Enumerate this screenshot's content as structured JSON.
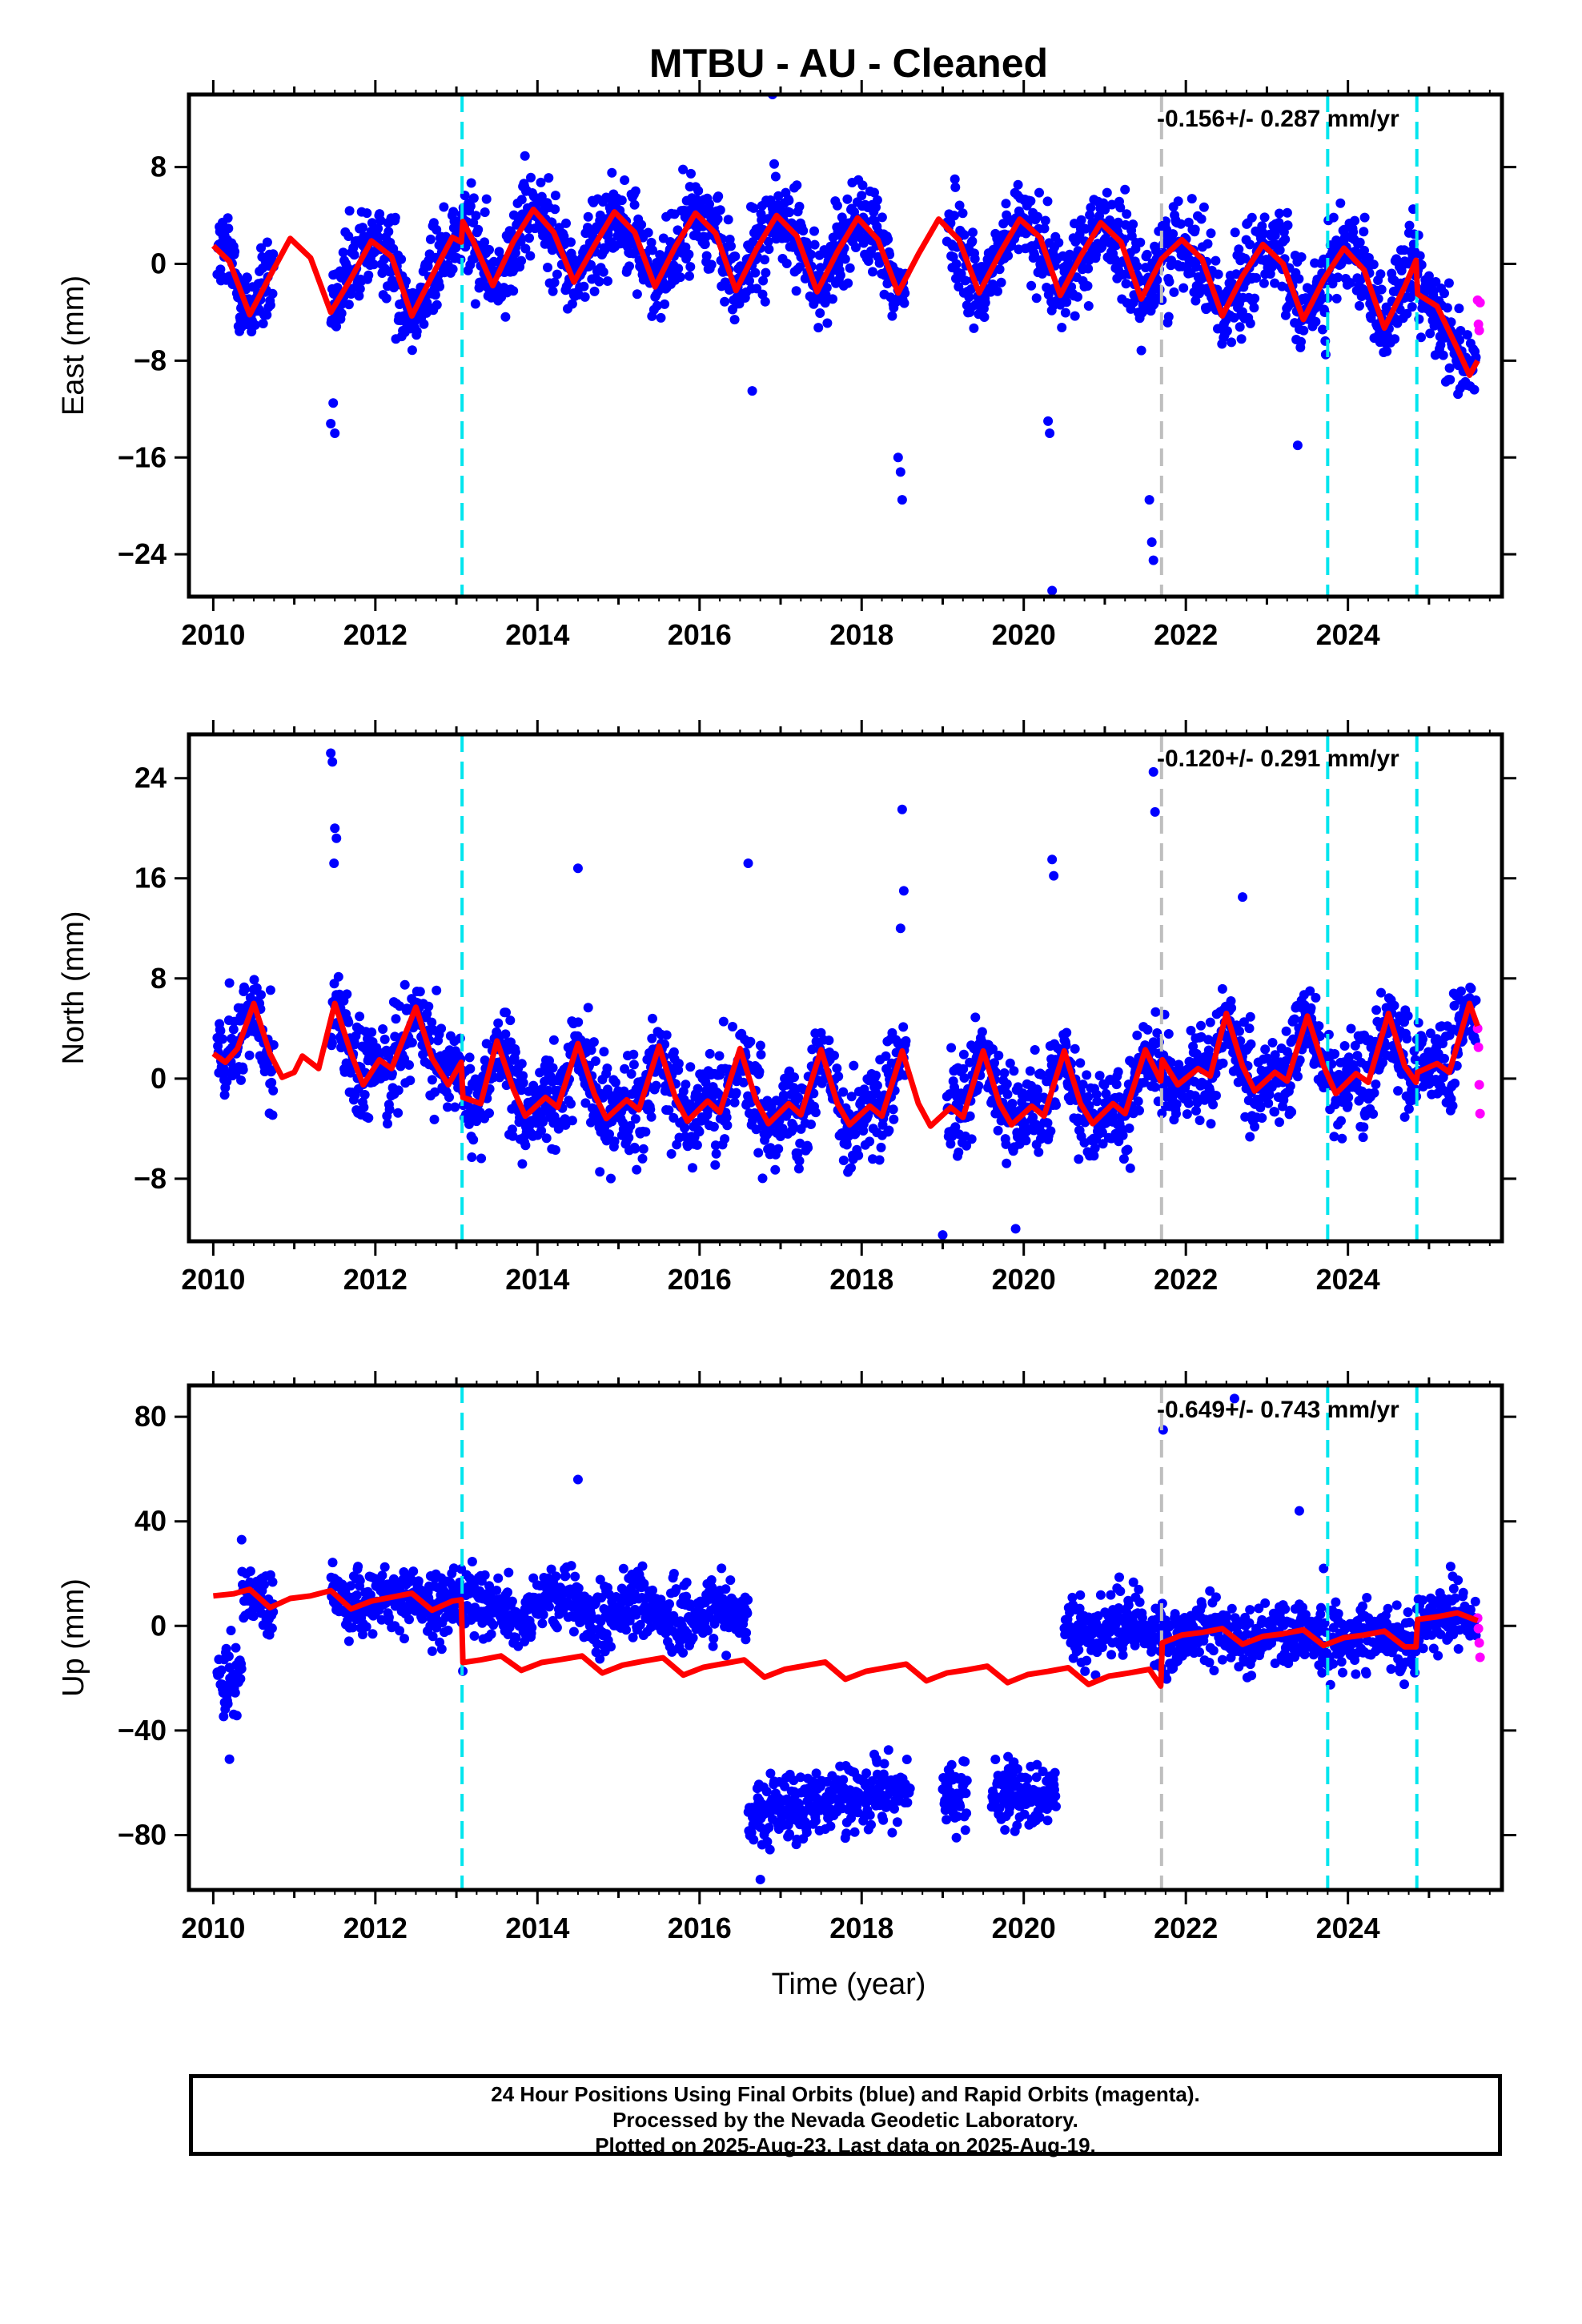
{
  "title": "MTBU  - AU - Cleaned",
  "x_axis_label": "Time (year)",
  "colors": {
    "final_orbits": "#0000ff",
    "rapid_orbits": "#ff00ff",
    "model": "#ff0000",
    "event_line": "#00e5ee",
    "grey_event_line": "#bebebe"
  },
  "footer": {
    "line1": "24 Hour Positions Using Final Orbits (blue) and Rapid Orbits (magenta).",
    "line2": "Processed by the Nevada Geodetic Laboratory.",
    "line3": "Plotted on 2025-Aug-23. Last data on 2025-Aug-19."
  },
  "chart_data": [
    {
      "type": "scatter",
      "component": "East",
      "ylabel": "East (mm)",
      "rate_label": "-0.156+/- 0.287 mm/yr",
      "xlim": [
        2009.7,
        2025.9
      ],
      "ylim": [
        -27.5,
        14
      ],
      "xticks": [
        2010,
        2012,
        2014,
        2016,
        2018,
        2020,
        2022,
        2024
      ],
      "yticks": [
        8,
        0,
        -8,
        -16,
        -24
      ],
      "event_lines_cyan": [
        2013.07,
        2023.75,
        2024.85
      ],
      "event_lines_grey": [
        2021.7
      ],
      "model": [
        [
          2010.0,
          1.5
        ],
        [
          2010.2,
          0.2
        ],
        [
          2010.45,
          -4.2
        ],
        [
          2010.7,
          -1.0
        ],
        [
          2010.95,
          2.1
        ],
        [
          2011.2,
          0.5
        ],
        [
          2011.45,
          -4.0
        ],
        [
          2011.7,
          -1.2
        ],
        [
          2011.95,
          1.9
        ],
        [
          2012.2,
          0.6
        ],
        [
          2012.45,
          -4.3
        ],
        [
          2012.7,
          -1.0
        ],
        [
          2012.95,
          2.2
        ],
        [
          2013.06,
          1.8
        ],
        [
          2013.08,
          3.5
        ],
        [
          2013.2,
          2.0
        ],
        [
          2013.45,
          -1.8
        ],
        [
          2013.7,
          1.8
        ],
        [
          2013.95,
          4.5
        ],
        [
          2014.2,
          2.6
        ],
        [
          2014.45,
          -1.5
        ],
        [
          2014.7,
          1.5
        ],
        [
          2014.95,
          4.3
        ],
        [
          2015.2,
          2.6
        ],
        [
          2015.45,
          -1.9
        ],
        [
          2015.7,
          1.4
        ],
        [
          2015.95,
          4.2
        ],
        [
          2016.2,
          2.5
        ],
        [
          2016.45,
          -2.2
        ],
        [
          2016.7,
          1.2
        ],
        [
          2016.95,
          4.0
        ],
        [
          2017.2,
          2.3
        ],
        [
          2017.45,
          -2.3
        ],
        [
          2017.7,
          1.0
        ],
        [
          2017.95,
          3.8
        ],
        [
          2018.2,
          2.0
        ],
        [
          2018.45,
          -2.4
        ],
        [
          2018.7,
          0.8
        ],
        [
          2018.95,
          3.7
        ],
        [
          2019.2,
          2.0
        ],
        [
          2019.45,
          -2.4
        ],
        [
          2019.7,
          0.8
        ],
        [
          2019.95,
          3.7
        ],
        [
          2020.2,
          2.2
        ],
        [
          2020.45,
          -2.6
        ],
        [
          2020.7,
          0.6
        ],
        [
          2020.95,
          3.4
        ],
        [
          2021.2,
          1.8
        ],
        [
          2021.45,
          -2.9
        ],
        [
          2021.7,
          0.4
        ],
        [
          2021.95,
          2.0
        ],
        [
          2022.2,
          0.4
        ],
        [
          2022.45,
          -4.3
        ],
        [
          2022.7,
          -1.0
        ],
        [
          2022.95,
          1.6
        ],
        [
          2023.2,
          0.0
        ],
        [
          2023.45,
          -4.6
        ],
        [
          2023.7,
          -1.3
        ],
        [
          2023.95,
          1.3
        ],
        [
          2024.2,
          -0.5
        ],
        [
          2024.45,
          -5.3
        ],
        [
          2024.7,
          -1.9
        ],
        [
          2024.84,
          0.3
        ],
        [
          2024.86,
          -2.5
        ],
        [
          2025.1,
          -3.5
        ],
        [
          2025.35,
          -7.0
        ],
        [
          2025.5,
          -9.2
        ],
        [
          2025.6,
          -8.0
        ]
      ],
      "outliers": [
        [
          2011.45,
          -13.2
        ],
        [
          2011.5,
          -14.0
        ],
        [
          2011.48,
          -11.5
        ],
        [
          2016.65,
          -10.5
        ],
        [
          2016.9,
          14.0
        ],
        [
          2018.45,
          -16.0
        ],
        [
          2018.48,
          -17.2
        ],
        [
          2018.5,
          -19.5
        ],
        [
          2020.3,
          -13.0
        ],
        [
          2020.32,
          -14.0
        ],
        [
          2020.35,
          -27.0
        ],
        [
          2021.55,
          -19.5
        ],
        [
          2021.58,
          -23.0
        ],
        [
          2021.6,
          -24.5
        ],
        [
          2023.38,
          -15.0
        ]
      ],
      "rapid": [
        [
          2025.6,
          -3.0
        ],
        [
          2025.61,
          -5.0
        ],
        [
          2025.62,
          -5.5
        ],
        [
          2025.63,
          -3.2
        ]
      ]
    },
    {
      "type": "scatter",
      "component": "North",
      "ylabel": "North (mm)",
      "rate_label": "-0.120+/- 0.291 mm/yr",
      "xlim": [
        2009.7,
        2025.9
      ],
      "ylim": [
        -13,
        27.5
      ],
      "xticks": [
        2010,
        2012,
        2014,
        2016,
        2018,
        2020,
        2022,
        2024
      ],
      "yticks": [
        24,
        16,
        8,
        0,
        -8
      ],
      "event_lines_cyan": [
        2013.07,
        2023.75,
        2024.85
      ],
      "event_lines_grey": [
        2021.7
      ],
      "model": [
        [
          2010.0,
          2.0
        ],
        [
          2010.15,
          1.3
        ],
        [
          2010.3,
          2.4
        ],
        [
          2010.5,
          6.0
        ],
        [
          2010.7,
          2.0
        ],
        [
          2010.85,
          0.1
        ],
        [
          2011.0,
          0.5
        ],
        [
          2011.1,
          1.8
        ],
        [
          2011.3,
          0.8
        ],
        [
          2011.5,
          6.0
        ],
        [
          2011.7,
          2.0
        ],
        [
          2011.85,
          -0.5
        ],
        [
          2012.05,
          1.5
        ],
        [
          2012.2,
          0.8
        ],
        [
          2012.5,
          5.7
        ],
        [
          2012.7,
          1.6
        ],
        [
          2012.9,
          -0.5
        ],
        [
          2013.06,
          1.3
        ],
        [
          2013.08,
          -1.5
        ],
        [
          2013.3,
          -2.0
        ],
        [
          2013.5,
          3.0
        ],
        [
          2013.7,
          -0.8
        ],
        [
          2013.85,
          -3.0
        ],
        [
          2014.1,
          -1.5
        ],
        [
          2014.25,
          -2.3
        ],
        [
          2014.5,
          2.8
        ],
        [
          2014.7,
          -1.2
        ],
        [
          2014.85,
          -3.2
        ],
        [
          2015.1,
          -1.7
        ],
        [
          2015.25,
          -2.5
        ],
        [
          2015.5,
          2.6
        ],
        [
          2015.7,
          -1.5
        ],
        [
          2015.85,
          -3.4
        ],
        [
          2016.1,
          -1.8
        ],
        [
          2016.25,
          -2.7
        ],
        [
          2016.5,
          2.4
        ],
        [
          2016.7,
          -1.8
        ],
        [
          2016.85,
          -3.6
        ],
        [
          2017.1,
          -2.0
        ],
        [
          2017.25,
          -2.9
        ],
        [
          2017.5,
          2.3
        ],
        [
          2017.7,
          -2.0
        ],
        [
          2017.85,
          -3.7
        ],
        [
          2018.1,
          -2.2
        ],
        [
          2018.25,
          -3.0
        ],
        [
          2018.5,
          2.2
        ],
        [
          2018.7,
          -2.0
        ],
        [
          2018.85,
          -3.8
        ],
        [
          2019.1,
          -2.3
        ],
        [
          2019.25,
          -3.1
        ],
        [
          2019.5,
          2.2
        ],
        [
          2019.7,
          -2.0
        ],
        [
          2019.85,
          -3.7
        ],
        [
          2020.1,
          -2.2
        ],
        [
          2020.25,
          -3.0
        ],
        [
          2020.5,
          2.2
        ],
        [
          2020.7,
          -2.0
        ],
        [
          2020.85,
          -3.6
        ],
        [
          2021.1,
          -2.0
        ],
        [
          2021.25,
          -2.8
        ],
        [
          2021.5,
          2.3
        ],
        [
          2021.69,
          -0.2
        ],
        [
          2021.71,
          1.5
        ],
        [
          2021.9,
          -0.5
        ],
        [
          2022.15,
          0.8
        ],
        [
          2022.3,
          0.2
        ],
        [
          2022.5,
          5.2
        ],
        [
          2022.7,
          1.0
        ],
        [
          2022.85,
          -1.0
        ],
        [
          2023.1,
          0.5
        ],
        [
          2023.25,
          -0.2
        ],
        [
          2023.5,
          5.0
        ],
        [
          2023.7,
          1.0
        ],
        [
          2023.85,
          -1.2
        ],
        [
          2024.1,
          0.4
        ],
        [
          2024.25,
          -0.3
        ],
        [
          2024.5,
          5.2
        ],
        [
          2024.7,
          1.0
        ],
        [
          2024.84,
          -0.3
        ],
        [
          2024.86,
          0.5
        ],
        [
          2025.1,
          1.2
        ],
        [
          2025.25,
          0.5
        ],
        [
          2025.5,
          6.0
        ],
        [
          2025.6,
          4.2
        ]
      ],
      "outliers": [
        [
          2011.45,
          26.0
        ],
        [
          2011.47,
          25.3
        ],
        [
          2011.5,
          20.0
        ],
        [
          2011.52,
          19.2
        ],
        [
          2011.49,
          17.2
        ],
        [
          2014.5,
          16.8
        ],
        [
          2016.6,
          17.2
        ],
        [
          2018.5,
          21.5
        ],
        [
          2018.52,
          15.0
        ],
        [
          2018.48,
          12.0
        ],
        [
          2020.35,
          17.5
        ],
        [
          2020.37,
          16.2
        ],
        [
          2021.6,
          24.5
        ],
        [
          2021.62,
          21.3
        ],
        [
          2022.7,
          14.5
        ],
        [
          2019.0,
          -12.5
        ],
        [
          2019.9,
          -12.0
        ]
      ],
      "rapid": [
        [
          2025.6,
          4.0
        ],
        [
          2025.61,
          2.5
        ],
        [
          2025.62,
          -0.5
        ],
        [
          2025.63,
          -2.8
        ]
      ]
    },
    {
      "type": "scatter",
      "component": "Up",
      "ylabel": "Up (mm)",
      "rate_label": "-0.649+/- 0.743 mm/yr",
      "xlim": [
        2009.7,
        2025.9
      ],
      "ylim": [
        -101,
        92
      ],
      "xticks": [
        2010,
        2012,
        2014,
        2016,
        2018,
        2020,
        2022,
        2024
      ],
      "yticks": [
        80,
        40,
        0,
        -40,
        -80
      ],
      "event_lines_cyan": [
        2013.07,
        2023.75,
        2024.85
      ],
      "event_lines_grey": [
        2021.7
      ],
      "model": [
        [
          2010.0,
          11.5
        ],
        [
          2010.25,
          12.3
        ],
        [
          2010.45,
          14.0
        ],
        [
          2010.7,
          7.0
        ],
        [
          2010.95,
          10.5
        ],
        [
          2011.2,
          11.5
        ],
        [
          2011.45,
          13.5
        ],
        [
          2011.7,
          6.5
        ],
        [
          2011.95,
          9.5
        ],
        [
          2012.2,
          11.0
        ],
        [
          2012.45,
          12.5
        ],
        [
          2012.7,
          6.0
        ],
        [
          2012.95,
          9.5
        ],
        [
          2013.06,
          10.0
        ],
        [
          2013.08,
          -14.0
        ],
        [
          2013.3,
          -13.0
        ],
        [
          2013.55,
          -11.5
        ],
        [
          2013.8,
          -17.0
        ],
        [
          2014.05,
          -14.0
        ],
        [
          2014.3,
          -12.8
        ],
        [
          2014.55,
          -11.5
        ],
        [
          2014.8,
          -18.0
        ],
        [
          2015.05,
          -15.0
        ],
        [
          2015.3,
          -13.5
        ],
        [
          2015.55,
          -12.2
        ],
        [
          2015.8,
          -18.8
        ],
        [
          2016.05,
          -15.8
        ],
        [
          2016.3,
          -14.4
        ],
        [
          2016.55,
          -13.0
        ],
        [
          2016.8,
          -19.6
        ],
        [
          2017.05,
          -16.6
        ],
        [
          2017.3,
          -15.2
        ],
        [
          2017.55,
          -13.8
        ],
        [
          2017.8,
          -20.4
        ],
        [
          2018.05,
          -17.4
        ],
        [
          2018.3,
          -16.0
        ],
        [
          2018.55,
          -14.6
        ],
        [
          2018.8,
          -21.0
        ],
        [
          2019.05,
          -18.0
        ],
        [
          2019.3,
          -16.8
        ],
        [
          2019.55,
          -15.4
        ],
        [
          2019.8,
          -21.7
        ],
        [
          2020.05,
          -18.6
        ],
        [
          2020.3,
          -17.4
        ],
        [
          2020.55,
          -16.0
        ],
        [
          2020.8,
          -22.4
        ],
        [
          2021.05,
          -19.2
        ],
        [
          2021.3,
          -18.0
        ],
        [
          2021.55,
          -16.6
        ],
        [
          2021.69,
          -23.0
        ],
        [
          2021.71,
          -6.5
        ],
        [
          2021.95,
          -3.5
        ],
        [
          2022.2,
          -2.5
        ],
        [
          2022.45,
          -1.0
        ],
        [
          2022.7,
          -7.0
        ],
        [
          2022.95,
          -4.0
        ],
        [
          2023.2,
          -3.0
        ],
        [
          2023.45,
          -1.5
        ],
        [
          2023.7,
          -7.5
        ],
        [
          2023.95,
          -4.5
        ],
        [
          2024.2,
          -3.5
        ],
        [
          2024.45,
          -2.0
        ],
        [
          2024.7,
          -8.0
        ],
        [
          2024.84,
          -8.0
        ],
        [
          2024.86,
          2.5
        ],
        [
          2025.1,
          3.5
        ],
        [
          2025.35,
          5.0
        ],
        [
          2025.6,
          2.0
        ]
      ],
      "outliers": [
        [
          2010.2,
          -51.0
        ],
        [
          2010.35,
          33.0
        ],
        [
          2014.5,
          56.0
        ],
        [
          2021.72,
          75.0
        ],
        [
          2022.6,
          87.0
        ],
        [
          2023.4,
          44.0
        ],
        [
          2023.7,
          22.0
        ],
        [
          2016.75,
          -97.0
        ]
      ],
      "rapid": [
        [
          2025.6,
          3.0
        ],
        [
          2025.61,
          -1.0
        ],
        [
          2025.62,
          -6.5
        ],
        [
          2025.63,
          -12.0
        ]
      ]
    }
  ]
}
